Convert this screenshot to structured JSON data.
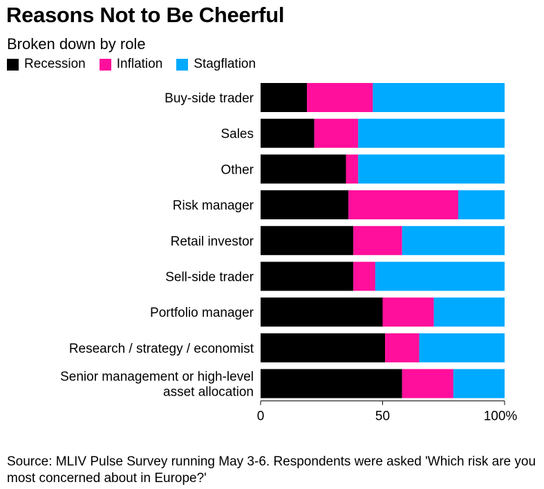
{
  "header": {
    "title": "Reasons Not to Be Cheerful",
    "subtitle": "Broken down by role"
  },
  "colors": {
    "recession": "#000000",
    "inflation": "#ff0f9b",
    "stagflation": "#00aaff"
  },
  "chart_data": {
    "type": "bar",
    "orientation": "horizontal",
    "stacked": true,
    "categories": [
      "Buy-side trader",
      "Sales",
      "Other",
      "Risk manager",
      "Retail investor",
      "Sell-side trader",
      "Portfolio manager",
      "Research / strategy / economist",
      "Senior management or high-level asset allocation"
    ],
    "series": [
      {
        "name": "Recession",
        "values": [
          19,
          22,
          35,
          36,
          38,
          38,
          50,
          51,
          58
        ]
      },
      {
        "name": "Inflation",
        "values": [
          27,
          18,
          5,
          45,
          20,
          9,
          21,
          14,
          21
        ]
      },
      {
        "name": "Stagflation",
        "values": [
          54,
          60,
          60,
          19,
          42,
          53,
          29,
          35,
          21
        ]
      }
    ],
    "xlim": [
      0,
      100
    ],
    "xticks": [
      "0",
      "50",
      "100%"
    ],
    "legend": "top-left",
    "grid": false
  },
  "footer": {
    "source": "Source: MLIV Pulse Survey running May 3-6. Respondents were asked 'Which risk are you most concerned about in Europe?'"
  }
}
